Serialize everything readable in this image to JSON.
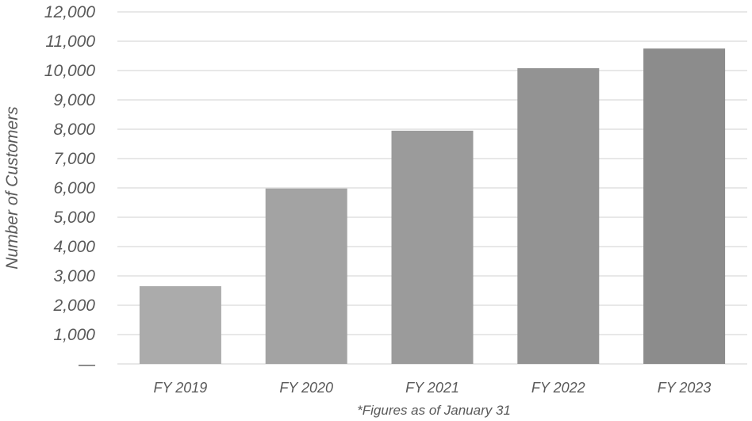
{
  "chart_data": {
    "type": "bar",
    "categories": [
      "FY 2019",
      "FY 2020",
      "FY 2021",
      "FY 2022",
      "FY 2023"
    ],
    "values": [
      2650,
      5980,
      7950,
      10080,
      10750
    ],
    "ylabel": "Number of Customers",
    "xlabel": "",
    "title": "",
    "ylim": [
      0,
      12000
    ],
    "y_ticks": [
      0,
      1000,
      2000,
      3000,
      4000,
      5000,
      6000,
      7000,
      8000,
      9000,
      10000,
      11000,
      12000
    ],
    "y_tick_labels": [
      "—",
      "1,000",
      "2,000",
      "3,000",
      "4,000",
      "5,000",
      "6,000",
      "7,000",
      "8,000",
      "9,000",
      "10,000",
      "11,000",
      "12,000"
    ],
    "grid": true,
    "legend": "none",
    "footnote": "*Figures as of January 31",
    "colors": {
      "bars": [
        "#ababab",
        "#a3a3a3",
        "#9b9b9b",
        "#939393",
        "#8c8c8c"
      ],
      "grid": "#d9d9d9",
      "text": "#595959"
    }
  }
}
